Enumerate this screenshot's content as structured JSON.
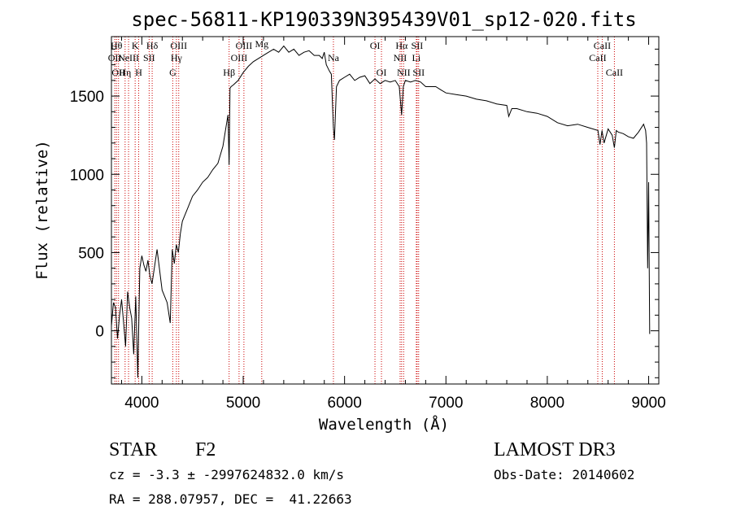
{
  "chart_data": {
    "type": "line",
    "title": "spec-56811-KP190339N395439V01_sp12-020.fits",
    "xlabel": "Wavelength (Å)",
    "ylabel": "Flux (relative)",
    "xlim": [
      3700,
      9100
    ],
    "ylim": [
      -340,
      1880
    ],
    "xticks": [
      {
        "value": 4000,
        "label": "4000"
      },
      {
        "value": 5000,
        "label": "5000"
      },
      {
        "value": 6000,
        "label": "6000"
      },
      {
        "value": 7000,
        "label": "7000"
      },
      {
        "value": 8000,
        "label": "8000"
      },
      {
        "value": 9000,
        "label": "9000"
      }
    ],
    "yticks": [
      {
        "value": 0,
        "label": "0"
      },
      {
        "value": 500,
        "label": "500"
      },
      {
        "value": 1000,
        "label": "1000"
      },
      {
        "value": 1500,
        "label": "1500"
      }
    ],
    "series": [
      {
        "color": "#000000",
        "x": [
          3700,
          3720,
          3740,
          3760,
          3780,
          3800,
          3820,
          3840,
          3860,
          3880,
          3900,
          3920,
          3940,
          3960,
          3980,
          4000,
          4020,
          4040,
          4060,
          4080,
          4100,
          4150,
          4200,
          4250,
          4280,
          4300,
          4320,
          4340,
          4360,
          4380,
          4400,
          4450,
          4500,
          4550,
          4600,
          4650,
          4700,
          4750,
          4800,
          4830,
          4850,
          4861,
          4870,
          4880,
          4900,
          4950,
          5000,
          5050,
          5100,
          5150,
          5200,
          5250,
          5300,
          5350,
          5400,
          5450,
          5500,
          5550,
          5600,
          5650,
          5700,
          5750,
          5780,
          5800,
          5820,
          5850,
          5870,
          5890,
          5900,
          5920,
          5950,
          6000,
          6050,
          6100,
          6150,
          6200,
          6250,
          6300,
          6350,
          6400,
          6450,
          6500,
          6540,
          6563,
          6580,
          6600,
          6650,
          6700,
          6750,
          6800,
          6850,
          6900,
          6950,
          7000,
          7100,
          7200,
          7300,
          7400,
          7500,
          7600,
          7620,
          7650,
          7700,
          7800,
          7900,
          8000,
          8100,
          8200,
          8300,
          8400,
          8450,
          8500,
          8520,
          8540,
          8560,
          8600,
          8640,
          8662,
          8680,
          8700,
          8750,
          8800,
          8850,
          8900,
          8950,
          8970,
          8980,
          8990,
          9000,
          9010
        ],
        "y": [
          30,
          180,
          150,
          -50,
          100,
          200,
          50,
          -100,
          250,
          150,
          80,
          -150,
          220,
          -300,
          400,
          480,
          420,
          380,
          450,
          350,
          300,
          520,
          260,
          180,
          50,
          520,
          430,
          550,
          500,
          620,
          700,
          780,
          860,
          900,
          950,
          980,
          1030,
          1070,
          1180,
          1300,
          1380,
          1060,
          1550,
          1560,
          1570,
          1600,
          1650,
          1690,
          1720,
          1740,
          1760,
          1780,
          1800,
          1780,
          1820,
          1780,
          1800,
          1760,
          1780,
          1790,
          1760,
          1760,
          1740,
          1780,
          1700,
          1660,
          1640,
          1300,
          1220,
          1560,
          1600,
          1620,
          1640,
          1600,
          1620,
          1630,
          1580,
          1610,
          1580,
          1600,
          1590,
          1600,
          1560,
          1380,
          1560,
          1600,
          1590,
          1600,
          1590,
          1560,
          1560,
          1560,
          1540,
          1520,
          1510,
          1500,
          1480,
          1470,
          1450,
          1440,
          1370,
          1420,
          1420,
          1400,
          1390,
          1370,
          1330,
          1310,
          1320,
          1300,
          1290,
          1280,
          1190,
          1280,
          1200,
          1290,
          1250,
          1170,
          1280,
          1270,
          1260,
          1240,
          1230,
          1270,
          1320,
          1280,
          1200,
          400,
          950,
          -20
        ]
      }
    ],
    "lines": [
      {
        "x": 3733,
        "label": "OII",
        "row": 2
      },
      {
        "x": 3750,
        "label": "Hθ",
        "row": 1
      },
      {
        "x": 3770,
        "label": "OII",
        "row": 3
      },
      {
        "x": 3835,
        "label": "Hη",
        "row": 3
      },
      {
        "x": 3869,
        "label": "NeIII",
        "row": 2
      },
      {
        "x": 3934,
        "label": "K",
        "row": 1
      },
      {
        "x": 3969,
        "label": "H",
        "row": 3
      },
      {
        "x": 4072,
        "label": "SII",
        "row": 2
      },
      {
        "x": 4102,
        "label": "Hδ",
        "row": 1
      },
      {
        "x": 4305,
        "label": "G",
        "row": 3
      },
      {
        "x": 4341,
        "label": "Hγ",
        "row": 2
      },
      {
        "x": 4364,
        "label": "OIII",
        "row": 1
      },
      {
        "x": 4861,
        "label": "Hβ",
        "row": 3
      },
      {
        "x": 4959,
        "label": "OIII",
        "row": 2
      },
      {
        "x": 5007,
        "label": "OIII",
        "row": 1
      },
      {
        "x": 5183,
        "label": "Mg",
        "row": 0
      },
      {
        "x": 5890,
        "label": "Na",
        "row": 2
      },
      {
        "x": 6300,
        "label": "OI",
        "row": 1
      },
      {
        "x": 6364,
        "label": "OI",
        "row": 3
      },
      {
        "x": 6548,
        "label": "NII",
        "row": 2
      },
      {
        "x": 6563,
        "label": "Hα",
        "row": 1
      },
      {
        "x": 6583,
        "label": "NII",
        "row": 3
      },
      {
        "x": 6708,
        "label": "Li",
        "row": 2
      },
      {
        "x": 6716,
        "label": "SII",
        "row": 1
      },
      {
        "x": 6731,
        "label": "SII",
        "row": 3
      },
      {
        "x": 8498,
        "label": "CaII",
        "row": 2
      },
      {
        "x": 8542,
        "label": "CaII",
        "row": 1
      },
      {
        "x": 8662,
        "label": "CaII",
        "row": 3
      }
    ]
  },
  "info": {
    "class": "STAR",
    "subclass": "F2",
    "survey": "LAMOST DR3",
    "cz": "cz = -3.3 ± -2997624832.0 km/s",
    "obs_date": "Obs-Date: 20140602",
    "radec": "RA = 288.07957, DEC =  41.22663"
  }
}
